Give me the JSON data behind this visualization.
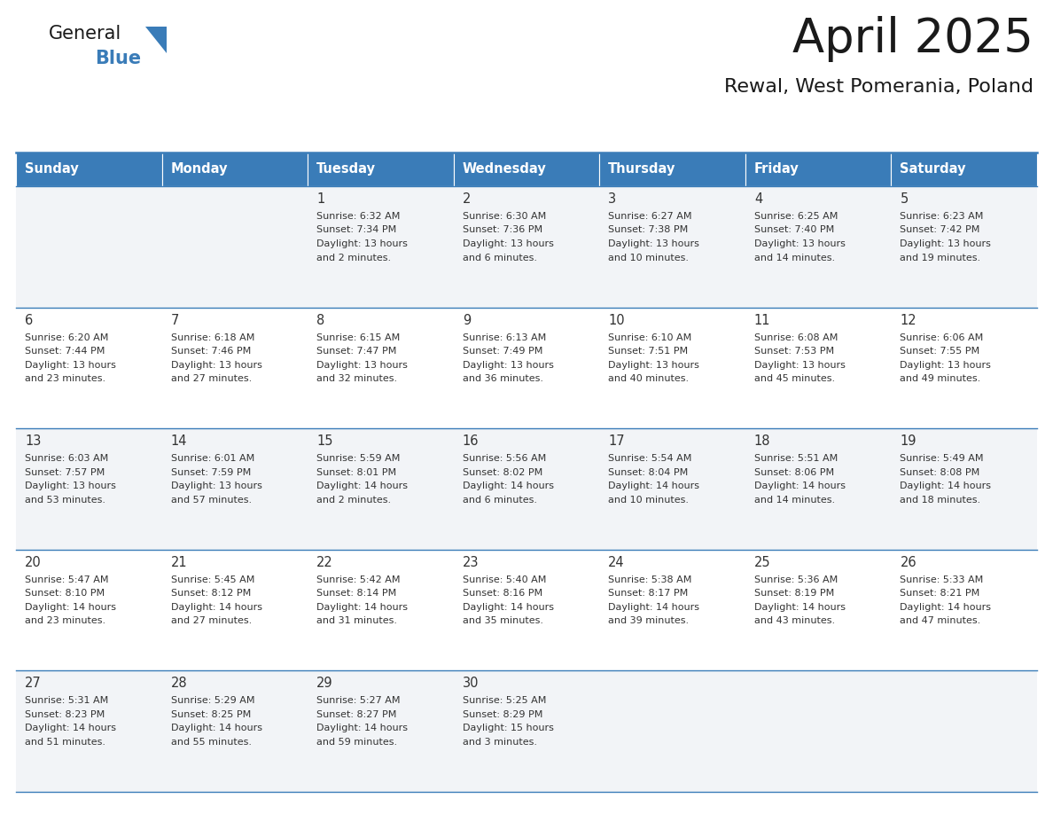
{
  "title": "April 2025",
  "subtitle": "Rewal, West Pomerania, Poland",
  "header_color": "#3A7CB8",
  "header_text_color": "#FFFFFF",
  "cell_bg_color_even": "#F2F4F7",
  "cell_bg_color_odd": "#FFFFFF",
  "day_names": [
    "Sunday",
    "Monday",
    "Tuesday",
    "Wednesday",
    "Thursday",
    "Friday",
    "Saturday"
  ],
  "text_color": "#333333",
  "line_color": "#3A7CB8",
  "title_color": "#1a1a1a",
  "subtitle_color": "#1a1a1a",
  "logo_general_color": "#1a1a1a",
  "logo_blue_color": "#3A7CB8",
  "logo_triangle_color": "#3A7CB8",
  "days": [
    {
      "day": 1,
      "col": 2,
      "row": 0,
      "sunrise": "6:32 AM",
      "sunset": "7:34 PM",
      "daylight_line1": "Daylight: 13 hours",
      "daylight_line2": "and 2 minutes."
    },
    {
      "day": 2,
      "col": 3,
      "row": 0,
      "sunrise": "6:30 AM",
      "sunset": "7:36 PM",
      "daylight_line1": "Daylight: 13 hours",
      "daylight_line2": "and 6 minutes."
    },
    {
      "day": 3,
      "col": 4,
      "row": 0,
      "sunrise": "6:27 AM",
      "sunset": "7:38 PM",
      "daylight_line1": "Daylight: 13 hours",
      "daylight_line2": "and 10 minutes."
    },
    {
      "day": 4,
      "col": 5,
      "row": 0,
      "sunrise": "6:25 AM",
      "sunset": "7:40 PM",
      "daylight_line1": "Daylight: 13 hours",
      "daylight_line2": "and 14 minutes."
    },
    {
      "day": 5,
      "col": 6,
      "row": 0,
      "sunrise": "6:23 AM",
      "sunset": "7:42 PM",
      "daylight_line1": "Daylight: 13 hours",
      "daylight_line2": "and 19 minutes."
    },
    {
      "day": 6,
      "col": 0,
      "row": 1,
      "sunrise": "6:20 AM",
      "sunset": "7:44 PM",
      "daylight_line1": "Daylight: 13 hours",
      "daylight_line2": "and 23 minutes."
    },
    {
      "day": 7,
      "col": 1,
      "row": 1,
      "sunrise": "6:18 AM",
      "sunset": "7:46 PM",
      "daylight_line1": "Daylight: 13 hours",
      "daylight_line2": "and 27 minutes."
    },
    {
      "day": 8,
      "col": 2,
      "row": 1,
      "sunrise": "6:15 AM",
      "sunset": "7:47 PM",
      "daylight_line1": "Daylight: 13 hours",
      "daylight_line2": "and 32 minutes."
    },
    {
      "day": 9,
      "col": 3,
      "row": 1,
      "sunrise": "6:13 AM",
      "sunset": "7:49 PM",
      "daylight_line1": "Daylight: 13 hours",
      "daylight_line2": "and 36 minutes."
    },
    {
      "day": 10,
      "col": 4,
      "row": 1,
      "sunrise": "6:10 AM",
      "sunset": "7:51 PM",
      "daylight_line1": "Daylight: 13 hours",
      "daylight_line2": "and 40 minutes."
    },
    {
      "day": 11,
      "col": 5,
      "row": 1,
      "sunrise": "6:08 AM",
      "sunset": "7:53 PM",
      "daylight_line1": "Daylight: 13 hours",
      "daylight_line2": "and 45 minutes."
    },
    {
      "day": 12,
      "col": 6,
      "row": 1,
      "sunrise": "6:06 AM",
      "sunset": "7:55 PM",
      "daylight_line1": "Daylight: 13 hours",
      "daylight_line2": "and 49 minutes."
    },
    {
      "day": 13,
      "col": 0,
      "row": 2,
      "sunrise": "6:03 AM",
      "sunset": "7:57 PM",
      "daylight_line1": "Daylight: 13 hours",
      "daylight_line2": "and 53 minutes."
    },
    {
      "day": 14,
      "col": 1,
      "row": 2,
      "sunrise": "6:01 AM",
      "sunset": "7:59 PM",
      "daylight_line1": "Daylight: 13 hours",
      "daylight_line2": "and 57 minutes."
    },
    {
      "day": 15,
      "col": 2,
      "row": 2,
      "sunrise": "5:59 AM",
      "sunset": "8:01 PM",
      "daylight_line1": "Daylight: 14 hours",
      "daylight_line2": "and 2 minutes."
    },
    {
      "day": 16,
      "col": 3,
      "row": 2,
      "sunrise": "5:56 AM",
      "sunset": "8:02 PM",
      "daylight_line1": "Daylight: 14 hours",
      "daylight_line2": "and 6 minutes."
    },
    {
      "day": 17,
      "col": 4,
      "row": 2,
      "sunrise": "5:54 AM",
      "sunset": "8:04 PM",
      "daylight_line1": "Daylight: 14 hours",
      "daylight_line2": "and 10 minutes."
    },
    {
      "day": 18,
      "col": 5,
      "row": 2,
      "sunrise": "5:51 AM",
      "sunset": "8:06 PM",
      "daylight_line1": "Daylight: 14 hours",
      "daylight_line2": "and 14 minutes."
    },
    {
      "day": 19,
      "col": 6,
      "row": 2,
      "sunrise": "5:49 AM",
      "sunset": "8:08 PM",
      "daylight_line1": "Daylight: 14 hours",
      "daylight_line2": "and 18 minutes."
    },
    {
      "day": 20,
      "col": 0,
      "row": 3,
      "sunrise": "5:47 AM",
      "sunset": "8:10 PM",
      "daylight_line1": "Daylight: 14 hours",
      "daylight_line2": "and 23 minutes."
    },
    {
      "day": 21,
      "col": 1,
      "row": 3,
      "sunrise": "5:45 AM",
      "sunset": "8:12 PM",
      "daylight_line1": "Daylight: 14 hours",
      "daylight_line2": "and 27 minutes."
    },
    {
      "day": 22,
      "col": 2,
      "row": 3,
      "sunrise": "5:42 AM",
      "sunset": "8:14 PM",
      "daylight_line1": "Daylight: 14 hours",
      "daylight_line2": "and 31 minutes."
    },
    {
      "day": 23,
      "col": 3,
      "row": 3,
      "sunrise": "5:40 AM",
      "sunset": "8:16 PM",
      "daylight_line1": "Daylight: 14 hours",
      "daylight_line2": "and 35 minutes."
    },
    {
      "day": 24,
      "col": 4,
      "row": 3,
      "sunrise": "5:38 AM",
      "sunset": "8:17 PM",
      "daylight_line1": "Daylight: 14 hours",
      "daylight_line2": "and 39 minutes."
    },
    {
      "day": 25,
      "col": 5,
      "row": 3,
      "sunrise": "5:36 AM",
      "sunset": "8:19 PM",
      "daylight_line1": "Daylight: 14 hours",
      "daylight_line2": "and 43 minutes."
    },
    {
      "day": 26,
      "col": 6,
      "row": 3,
      "sunrise": "5:33 AM",
      "sunset": "8:21 PM",
      "daylight_line1": "Daylight: 14 hours",
      "daylight_line2": "and 47 minutes."
    },
    {
      "day": 27,
      "col": 0,
      "row": 4,
      "sunrise": "5:31 AM",
      "sunset": "8:23 PM",
      "daylight_line1": "Daylight: 14 hours",
      "daylight_line2": "and 51 minutes."
    },
    {
      "day": 28,
      "col": 1,
      "row": 4,
      "sunrise": "5:29 AM",
      "sunset": "8:25 PM",
      "daylight_line1": "Daylight: 14 hours",
      "daylight_line2": "and 55 minutes."
    },
    {
      "day": 29,
      "col": 2,
      "row": 4,
      "sunrise": "5:27 AM",
      "sunset": "8:27 PM",
      "daylight_line1": "Daylight: 14 hours",
      "daylight_line2": "and 59 minutes."
    },
    {
      "day": 30,
      "col": 3,
      "row": 4,
      "sunrise": "5:25 AM",
      "sunset": "8:29 PM",
      "daylight_line1": "Daylight: 15 hours",
      "daylight_line2": "and 3 minutes."
    }
  ]
}
